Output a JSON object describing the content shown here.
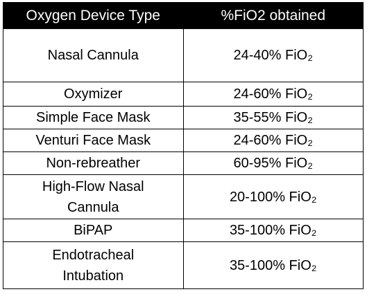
{
  "table": {
    "header": [
      "Oxygen Device Type",
      "%FiO2 obtained"
    ],
    "rows": [
      [
        "Nasal Cannula",
        "24-40% FiO₂"
      ],
      [
        "Oxymizer",
        "24-60% FiO₂"
      ],
      [
        "Simple Face Mask",
        "35-55% FiO₂"
      ],
      [
        "Venturi Face Mask",
        "24-60% FiO₂"
      ],
      [
        "Non-rebreather",
        "60-95% FiO₂"
      ],
      [
        "High-Flow Nasal Cannula",
        "20-100% FiO₂"
      ],
      [
        "BiPAP",
        "35-100% FiO₂"
      ],
      [
        "Endotracheal Intubation",
        "35-100% FiO₂"
      ]
    ]
  }
}
